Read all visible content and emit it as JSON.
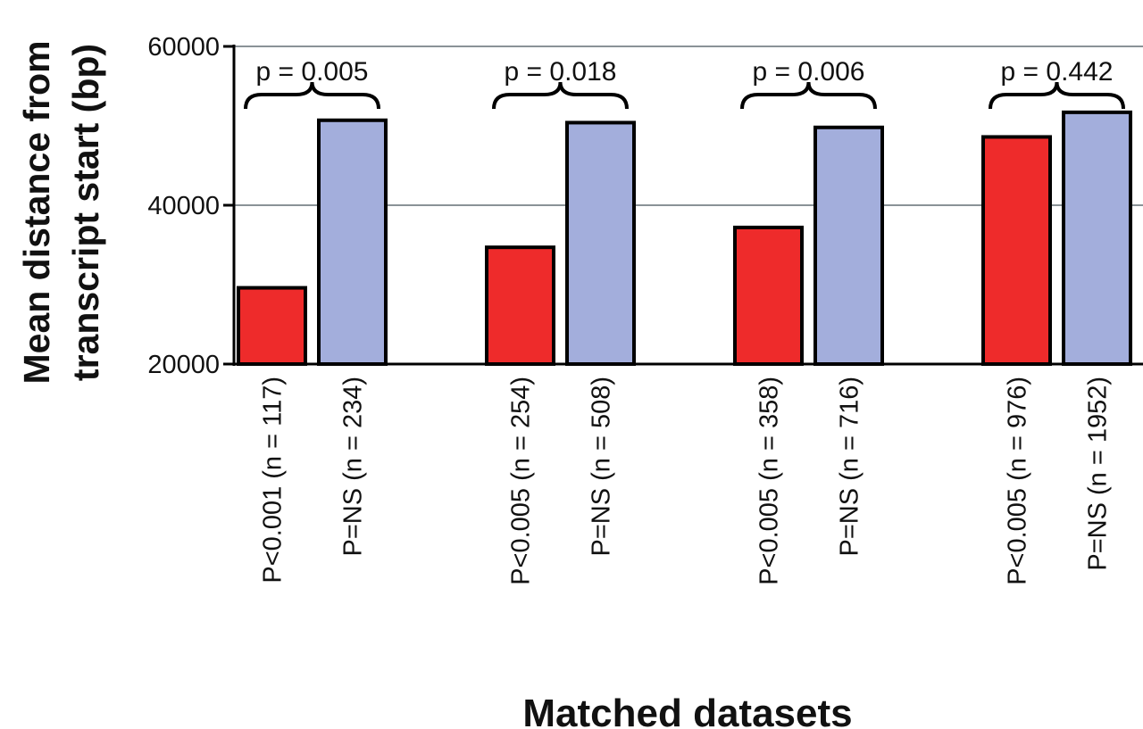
{
  "chart_data": {
    "type": "bar",
    "xlabel": "Matched datasets",
    "ylabel_lines": [
      "Mean distance from",
      "transcript start (bp)"
    ],
    "ylim": [
      20000,
      60000
    ],
    "yticks": [
      20000,
      40000,
      60000
    ],
    "ytick_labels": [
      "20000",
      "40000",
      "60000"
    ],
    "grid": true,
    "colors": {
      "significant": "#ee2b2b",
      "ns": "#a3aedc"
    },
    "groups": [
      {
        "p_label": "p = 0.005",
        "bars": [
          {
            "label": "P<0.001 (n = 117)",
            "value": 29600,
            "kind": "significant"
          },
          {
            "label": "P=NS (n = 234)",
            "value": 50700,
            "kind": "ns"
          }
        ]
      },
      {
        "p_label": "p = 0.018",
        "bars": [
          {
            "label": "P<0.005 (n = 254)",
            "value": 34700,
            "kind": "significant"
          },
          {
            "label": "P=NS (n = 508)",
            "value": 50400,
            "kind": "ns"
          }
        ]
      },
      {
        "p_label": "p = 0.006",
        "bars": [
          {
            "label": "P<0.005 (n = 358)",
            "value": 37200,
            "kind": "significant"
          },
          {
            "label": "P=NS (n = 716)",
            "value": 49800,
            "kind": "ns"
          }
        ]
      },
      {
        "p_label": "p = 0.442",
        "bars": [
          {
            "label": "P<0.005 (n = 976)",
            "value": 48600,
            "kind": "significant"
          },
          {
            "label": "P=NS (n = 1952)",
            "value": 51700,
            "kind": "ns"
          }
        ]
      }
    ]
  }
}
